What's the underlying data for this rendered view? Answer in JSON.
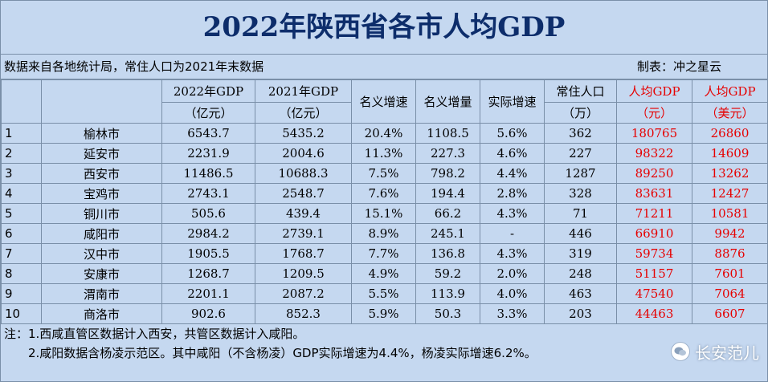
{
  "title": "2022年陕西省各市人均GDP",
  "source_note": "数据来自各地统计局，常住人口为2021年末数据",
  "credit": "制表：冲之星云",
  "headers": {
    "gdp2022_line1": "2022年GDP",
    "gdp2022_line2": "（亿元）",
    "gdp2021_line1": "2021年GDP",
    "gdp2021_line2": "（亿元）",
    "nominal_growth": "名义增速",
    "nominal_increase": "名义增量",
    "real_growth": "实际增速",
    "population_line1": "常住人口",
    "population_line2": "（万）",
    "per_capita_cny_line1": "人均GDP",
    "per_capita_cny_line2": "（元）",
    "per_capita_usd_line1": "人均GDP",
    "per_capita_usd_line2": "（美元）"
  },
  "rows": [
    {
      "rank": "1",
      "city": "榆林市",
      "gdp2022": "6543.7",
      "gdp2021": "5435.2",
      "nominal_growth": "20.4%",
      "nominal_increase": "1108.5",
      "real_growth": "5.6%",
      "population": "362",
      "per_capita_cny": "180765",
      "per_capita_usd": "26860"
    },
    {
      "rank": "2",
      "city": "延安市",
      "gdp2022": "2231.9",
      "gdp2021": "2004.6",
      "nominal_growth": "11.3%",
      "nominal_increase": "227.3",
      "real_growth": "4.6%",
      "population": "227",
      "per_capita_cny": "98322",
      "per_capita_usd": "14609"
    },
    {
      "rank": "3",
      "city": "西安市",
      "gdp2022": "11486.5",
      "gdp2021": "10688.3",
      "nominal_growth": "7.5%",
      "nominal_increase": "798.2",
      "real_growth": "4.4%",
      "population": "1287",
      "per_capita_cny": "89250",
      "per_capita_usd": "13262"
    },
    {
      "rank": "4",
      "city": "宝鸡市",
      "gdp2022": "2743.1",
      "gdp2021": "2548.7",
      "nominal_growth": "7.6%",
      "nominal_increase": "194.4",
      "real_growth": "2.8%",
      "population": "328",
      "per_capita_cny": "83631",
      "per_capita_usd": "12427"
    },
    {
      "rank": "5",
      "city": "铜川市",
      "gdp2022": "505.6",
      "gdp2021": "439.4",
      "nominal_growth": "15.1%",
      "nominal_increase": "66.2",
      "real_growth": "4.3%",
      "population": "71",
      "per_capita_cny": "71211",
      "per_capita_usd": "10581"
    },
    {
      "rank": "6",
      "city": "咸阳市",
      "gdp2022": "2984.2",
      "gdp2021": "2739.1",
      "nominal_growth": "8.9%",
      "nominal_increase": "245.1",
      "real_growth": "-",
      "population": "446",
      "per_capita_cny": "66910",
      "per_capita_usd": "9942"
    },
    {
      "rank": "7",
      "city": "汉中市",
      "gdp2022": "1905.5",
      "gdp2021": "1768.7",
      "nominal_growth": "7.7%",
      "nominal_increase": "136.8",
      "real_growth": "4.3%",
      "population": "319",
      "per_capita_cny": "59734",
      "per_capita_usd": "8876"
    },
    {
      "rank": "8",
      "city": "安康市",
      "gdp2022": "1268.7",
      "gdp2021": "1209.5",
      "nominal_growth": "4.9%",
      "nominal_increase": "59.2",
      "real_growth": "2.0%",
      "population": "248",
      "per_capita_cny": "51157",
      "per_capita_usd": "7601"
    },
    {
      "rank": "9",
      "city": "渭南市",
      "gdp2022": "2201.1",
      "gdp2021": "2087.2",
      "nominal_growth": "5.5%",
      "nominal_increase": "113.9",
      "real_growth": "4.0%",
      "population": "463",
      "per_capita_cny": "47540",
      "per_capita_usd": "7064"
    },
    {
      "rank": "10",
      "city": "商洛市",
      "gdp2022": "902.6",
      "gdp2021": "852.3",
      "nominal_growth": "5.9%",
      "nominal_increase": "50.3",
      "real_growth": "3.3%",
      "population": "203",
      "per_capita_cny": "44463",
      "per_capita_usd": "6607"
    }
  ],
  "notes": [
    "注：1.西咸直管区数据计入西安，共管区数据计入咸阳。",
    "2.咸阳数据含杨凌示范区。其中咸阳（不含杨凌）GDP实际增速为4.4%，杨凌实际增速6.2%。"
  ],
  "watermark": {
    "text": "长安范儿",
    "icon": "wechat-icon"
  },
  "colors": {
    "background": "#c5d8f0",
    "title": "#0d2d6b",
    "highlight": "#e60000",
    "grid": "#7a8fa8"
  }
}
